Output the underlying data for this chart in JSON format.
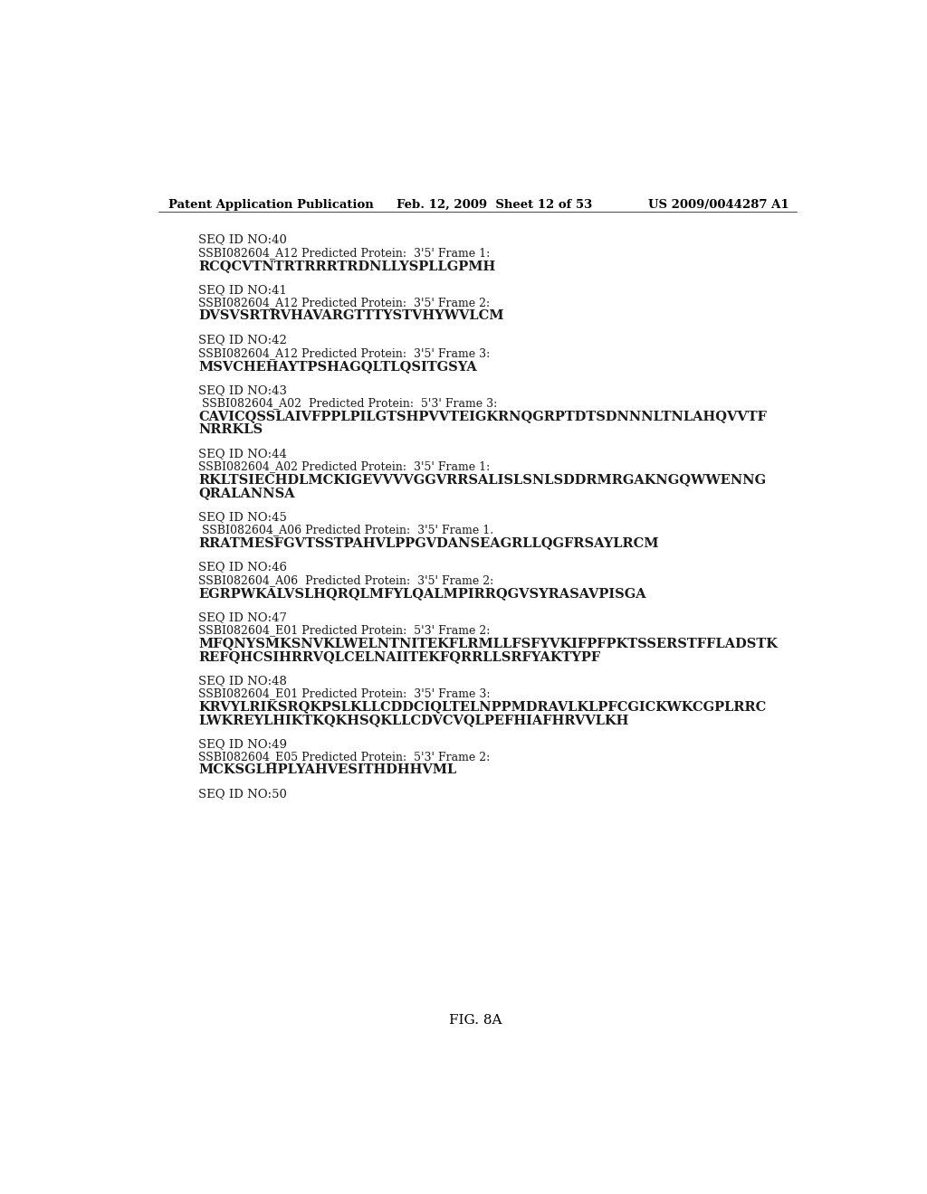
{
  "background_color": "#ffffff",
  "header_left": "Patent Application Publication",
  "header_center": "Feb. 12, 2009  Sheet 12 of 53",
  "header_right": "US 2009/0044287 A1",
  "footer": "FIG. 8A",
  "entries": [
    {
      "seq_id": "SEQ ID NO:40",
      "desc": "SSBI082604_A12 Predicted Protein:  3'5' Frame 1:",
      "sequence": "RCQCVTNTRTRRRTRDNLLYSPLLGPMH"
    },
    {
      "seq_id": "SEQ ID NO:41",
      "desc": "SSBI082604_A12 Predicted Protein:  3'5' Frame 2:",
      "sequence": "DVSVSRTRVHAVARGTTTYSTVHYWVLCM"
    },
    {
      "seq_id": "SEQ ID NO:42",
      "desc": "SSBI082604_A12 Predicted Protein:  3'5' Frame 3:",
      "sequence": "MSVCHEHAYTPSHAGQLTLQSITGSYA"
    },
    {
      "seq_id": "SEQ ID NO:43",
      "desc": " SSBI082604_A02  Predicted Protein:  5'3' Frame 3:",
      "sequence": "CAVICQSSLAIVFPPLPILGTSHPVVTEIGKRNQGRPTDTSDNNNLTNLAHQVVTF\nNRRKLS"
    },
    {
      "seq_id": "SEQ ID NO:44",
      "desc": "SSBI082604_A02 Predicted Protein:  3'5' Frame 1:",
      "sequence": "RKLTSIECHDLMCKIGEVVVVGGVRRSALISLSNLSDDRMRGAKNGQWWENNG\nQRALANNSA"
    },
    {
      "seq_id": "SEQ ID NO:45",
      "desc": " SSBI082604_A06 Predicted Protein:  3'5' Frame 1.",
      "sequence": "RRATMESFGVTSSTPAHVLPPGVDANSEAGRLLQGFRSAYLRCM"
    },
    {
      "seq_id": "SEQ ID NO:46",
      "desc": "SSBI082604_A06  Predicted Protein:  3'5' Frame 2:",
      "sequence": "EGRPWKALVSLHQRQLMFYLQALMPIRRQGVSYRASAVPISGA"
    },
    {
      "seq_id": "SEQ ID NO:47",
      "desc": "SSBI082604_E01 Predicted Protein:  5'3' Frame 2:",
      "sequence": "MFQNYSMKSNVKLWELNTNITEKFLRMLLFSFYVKIFPFPKTSSERSTFFLADSTK\nREFQHCSIHRRVQLCELNAIITEKFQRRLLSRFYAKTYPF"
    },
    {
      "seq_id": "SEQ ID NO:48",
      "desc": "SSBI082604_E01 Predicted Protein:  3'5' Frame 3:",
      "sequence": "KRVYLRIKSRQKPSLKLLCDDCIQLTELNPPMDRAVLKLPFCGICKWKCGPLRRC\nLWKREYLHIKTKQKHSQKLLCDVCVQLPEFHIAFHRVVLKH"
    },
    {
      "seq_id": "SEQ ID NO:49",
      "desc": "SSBI082604_E05 Predicted Protein:  5'3' Frame 2:",
      "sequence": "MCKSGLHPLYAHVESITHDHHVML"
    },
    {
      "seq_id": "SEQ ID NO:50",
      "desc": "",
      "sequence": ""
    }
  ]
}
